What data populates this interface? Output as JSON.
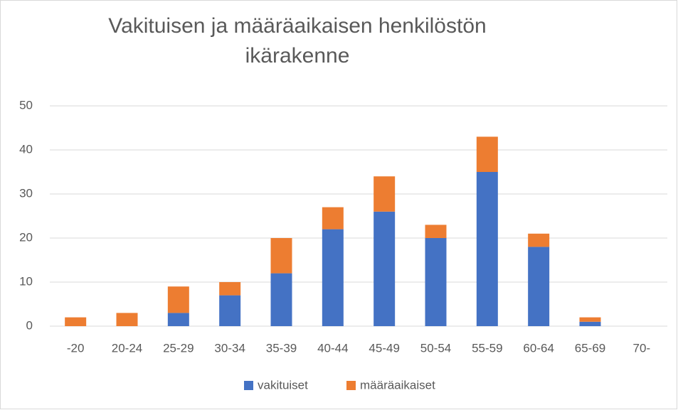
{
  "chart_data": {
    "type": "stacked_bar",
    "title": "Vakituisen ja määräaikaisen henkilöstön ikärakenne",
    "categories": [
      "-20",
      "20-24",
      "25-29",
      "30-34",
      "35-39",
      "40-44",
      "45-49",
      "50-54",
      "55-59",
      "60-64",
      "65-69",
      "70-"
    ],
    "series": [
      {
        "name": "vakituiset",
        "color": "#4472c4",
        "values": [
          0,
          0,
          3,
          7,
          12,
          22,
          26,
          20,
          35,
          18,
          1,
          0
        ]
      },
      {
        "name": "määräaikaiset",
        "color": "#ed7d31",
        "values": [
          2,
          3,
          6,
          3,
          8,
          5,
          8,
          3,
          8,
          3,
          1,
          0
        ]
      }
    ],
    "ylim": [
      0,
      50
    ],
    "yticks": [
      0,
      10,
      20,
      30,
      40,
      50
    ],
    "grid": true,
    "legend": "bottom"
  }
}
